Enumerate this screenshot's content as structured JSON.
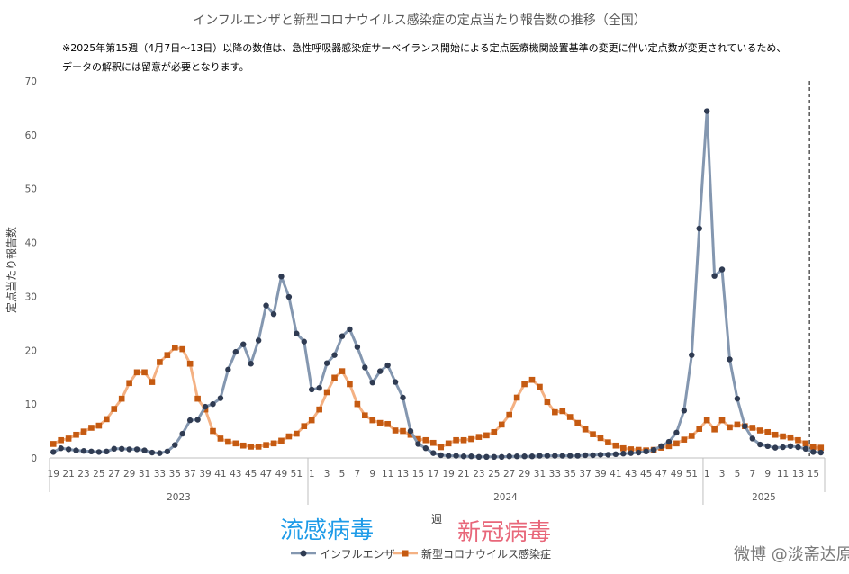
{
  "chart_data": {
    "type": "line",
    "title": "インフルエンザと新型コロナウイルス感染症の定点当たり報告数の推移（全国）",
    "note_lines": [
      "※2025年第15週（4月7日～13日）以降の数値は、急性呼吸器感染症サーベイランス開始による定点医療機関設置基準の変更に伴い定点数が変更されているため、",
      "データの解釈には留意が必要となります。"
    ],
    "ylabel": "定点当たり報告数",
    "xlabel": "週",
    "ylim": [
      0,
      70
    ],
    "yticks": [
      0,
      10,
      20,
      30,
      40,
      50,
      60,
      70
    ],
    "grid": false,
    "legend_position": "bottom",
    "x_tick_labels": [
      "19",
      "21",
      "23",
      "25",
      "27",
      "29",
      "31",
      "33",
      "35",
      "37",
      "39",
      "41",
      "43",
      "45",
      "47",
      "49",
      "51",
      "1",
      "3",
      "5",
      "7",
      "9",
      "11",
      "13",
      "15",
      "17",
      "19",
      "21",
      "23",
      "25",
      "27",
      "29",
      "31",
      "33",
      "35",
      "37",
      "39",
      "41",
      "43",
      "45",
      "47",
      "49",
      "51",
      "1",
      "3",
      "5",
      "7",
      "9",
      "11",
      "13",
      "15"
    ],
    "year_groups": [
      {
        "label": "2023",
        "weeks": 34
      },
      {
        "label": "2024",
        "weeks": 52
      },
      {
        "label": "2025",
        "weeks": 16
      }
    ],
    "reference_line_week_label": "15",
    "series": [
      {
        "name": "インフルエンザ",
        "color": "#8497b0",
        "marker_color": "#2f3b52",
        "marker": "circle",
        "values": [
          1.1,
          1.8,
          1.6,
          1.4,
          1.3,
          1.2,
          1.1,
          1.2,
          1.7,
          1.7,
          1.6,
          1.6,
          1.4,
          1.0,
          0.9,
          1.2,
          2.4,
          4.5,
          7.0,
          7.1,
          9.5,
          10.0,
          11.1,
          16.4,
          19.7,
          21.1,
          17.5,
          21.8,
          28.3,
          26.7,
          33.7,
          29.9,
          23.1,
          21.6,
          12.7,
          13.0,
          17.6,
          19.1,
          22.6,
          23.9,
          20.6,
          16.8,
          14.0,
          16.1,
          17.2,
          14.1,
          11.2,
          5.0,
          2.6,
          1.8,
          0.9,
          0.5,
          0.4,
          0.4,
          0.3,
          0.3,
          0.2,
          0.2,
          0.2,
          0.2,
          0.3,
          0.3,
          0.3,
          0.3,
          0.4,
          0.4,
          0.4,
          0.4,
          0.4,
          0.4,
          0.5,
          0.5,
          0.6,
          0.6,
          0.7,
          0.8,
          0.9,
          1.0,
          1.2,
          1.5,
          2.2,
          3.0,
          4.7,
          8.8,
          19.1,
          42.6,
          64.4,
          33.8,
          35.0,
          18.3,
          11.0,
          5.9,
          3.6,
          2.5,
          2.2,
          1.9,
          2.0,
          2.2,
          2.0,
          1.7,
          1.1,
          1.0
        ]
      },
      {
        "name": "新型コロナウイルス感染症",
        "color": "#f4b183",
        "marker_color": "#c55a11",
        "marker": "square",
        "values": [
          2.6,
          3.3,
          3.6,
          4.3,
          4.9,
          5.6,
          6.0,
          7.2,
          9.1,
          11.0,
          13.9,
          15.9,
          15.9,
          14.1,
          17.8,
          19.1,
          20.5,
          20.2,
          17.5,
          11.0,
          9.0,
          5.0,
          3.6,
          3.0,
          2.7,
          2.3,
          2.1,
          2.1,
          2.4,
          2.7,
          3.2,
          4.0,
          4.5,
          5.9,
          7.0,
          9.0,
          12.2,
          14.9,
          16.1,
          13.7,
          10.0,
          7.9,
          7.0,
          6.5,
          6.3,
          5.1,
          5.0,
          4.3,
          3.5,
          3.3,
          2.8,
          2.0,
          2.7,
          3.3,
          3.3,
          3.5,
          3.9,
          4.2,
          4.8,
          6.2,
          8.0,
          11.2,
          13.7,
          14.5,
          13.2,
          10.4,
          8.5,
          8.7,
          7.6,
          6.5,
          5.3,
          4.4,
          3.7,
          2.9,
          2.3,
          1.8,
          1.6,
          1.5,
          1.4,
          1.5,
          1.9,
          2.2,
          2.7,
          3.4,
          4.1,
          5.4,
          7.0,
          5.3,
          7.0,
          5.7,
          6.2,
          5.9,
          5.6,
          5.1,
          4.8,
          4.3,
          4.0,
          3.8,
          3.3,
          2.7,
          2.0,
          1.9
        ]
      }
    ]
  },
  "overlays": {
    "flu_label": "流感病毒",
    "covid_label": "新冠病毒"
  },
  "watermark": "微博 @淡斋达原"
}
